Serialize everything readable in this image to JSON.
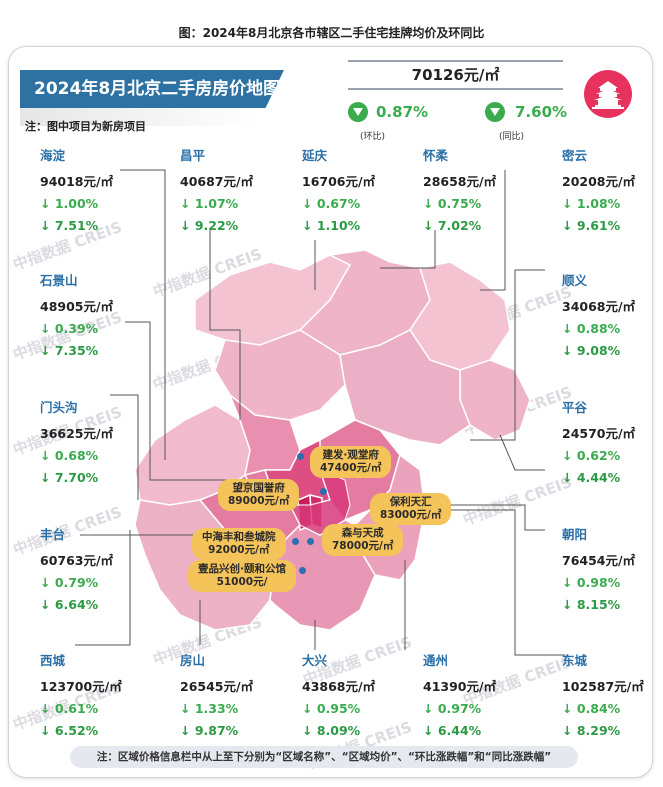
{
  "figure_title": "图：2024年8月北京各市辖区二手住宅挂牌均价及环同比",
  "banner_title": "2024年8月北京二手房房价地图",
  "note_new_projects": "注：图中项目为新房项目",
  "city_average": {
    "price": "70126元/㎡",
    "mom": "0.87%",
    "mom_label": "(环比)",
    "yoy": "7.60%",
    "yoy_label": "(同比)"
  },
  "watermark": "中指数据 CREIS",
  "footnote": "注：区域价格信息栏中从上至下分别为“区域名称”、“区域均价”、“环比涨跌幅”和“同比涨跌幅”",
  "colors": {
    "accent": "#2d72a3",
    "down": "#3aab4f",
    "project_label": "#f4c35a",
    "map_light": "#f3c3d2",
    "map_mid": "#e98fb0",
    "map_dark": "#dd4f82",
    "map_core": "#c81e5a"
  },
  "chart_data": {
    "type": "map",
    "unit": "元/㎡",
    "districts": [
      {
        "name": "海淀",
        "price": "94018元/㎡",
        "mom": "↓ 1.00%",
        "yoy": "↓ 7.51%"
      },
      {
        "name": "昌平",
        "price": "40687元/㎡",
        "mom": "↓ 1.07%",
        "yoy": "↓ 9.22%"
      },
      {
        "name": "延庆",
        "price": "16706元/㎡",
        "mom": "↓ 0.67%",
        "yoy": "↓ 1.10%"
      },
      {
        "name": "怀柔",
        "price": "28658元/㎡",
        "mom": "↓ 0.75%",
        "yoy": "↓ 7.02%"
      },
      {
        "name": "密云",
        "price": "20208元/㎡",
        "mom": "↓ 1.08%",
        "yoy": "↓ 9.61%"
      },
      {
        "name": "石景山",
        "price": "48905元/㎡",
        "mom": "↓ 0.39%",
        "yoy": "↓ 7.35%"
      },
      {
        "name": "顺义",
        "price": "34068元/㎡",
        "mom": "↓ 0.88%",
        "yoy": "↓ 9.08%"
      },
      {
        "name": "门头沟",
        "price": "36625元/㎡",
        "mom": "↓ 0.68%",
        "yoy": "↓ 7.70%"
      },
      {
        "name": "平谷",
        "price": "24570元/㎡",
        "mom": "↓ 0.62%",
        "yoy": "↓ 4.44%"
      },
      {
        "name": "丰台",
        "price": "60763元/㎡",
        "mom": "↓ 0.79%",
        "yoy": "↓ 6.64%"
      },
      {
        "name": "朝阳",
        "price": "76454元/㎡",
        "mom": "↓ 0.98%",
        "yoy": "↓ 8.15%"
      },
      {
        "name": "西城",
        "price": "123700元/㎡",
        "mom": "↓ 0.61%",
        "yoy": "↓ 6.52%"
      },
      {
        "name": "房山",
        "price": "26545元/㎡",
        "mom": "↓ 1.33%",
        "yoy": "↓ 9.87%"
      },
      {
        "name": "大兴",
        "price": "43868元/㎡",
        "mom": "↓ 0.95%",
        "yoy": "↓ 8.09%"
      },
      {
        "name": "通州",
        "price": "41390元/㎡",
        "mom": "↓ 0.97%",
        "yoy": "↓ 6.44%"
      },
      {
        "name": "东城",
        "price": "102587元/㎡",
        "mom": "↓ 0.84%",
        "yoy": "↓ 8.29%"
      }
    ],
    "projects": [
      {
        "name": "建发·观堂府",
        "price": "47400元/㎡"
      },
      {
        "name": "望京国誉府",
        "price": "89000元/㎡"
      },
      {
        "name": "保利天汇",
        "price": "83000元/㎡"
      },
      {
        "name": "中海丰和叁城院",
        "price": "92000元/㎡"
      },
      {
        "name": "森与天成",
        "price": "78000元/㎡"
      },
      {
        "name": "壹品兴创·颐和公馆",
        "price": "51000元/"
      }
    ]
  }
}
